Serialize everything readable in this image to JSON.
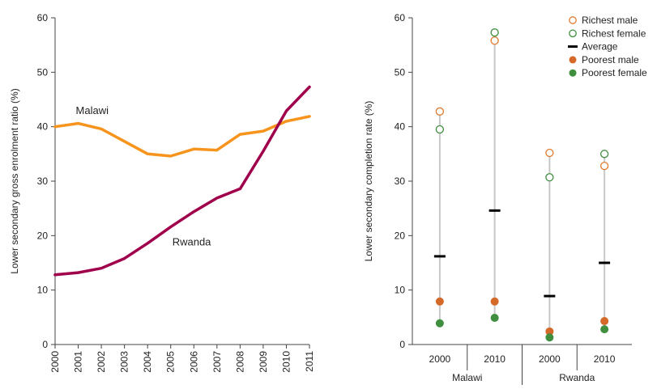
{
  "chart_data": [
    {
      "type": "line",
      "ylabel": "Lower secondary gross enrolment ratio (%)",
      "ylim": [
        0,
        60
      ],
      "yticks": [
        "0",
        "10",
        "20",
        "30",
        "40",
        "50",
        "60"
      ],
      "categories": [
        "2000",
        "2001",
        "2002",
        "2003",
        "2004",
        "2005",
        "2006",
        "2007",
        "2008",
        "2009",
        "2010",
        "2011"
      ],
      "series": [
        {
          "name": "Malawi",
          "color": "#f7941d",
          "values": [
            40.0,
            40.6,
            39.6,
            37.3,
            35.0,
            34.6,
            35.9,
            35.7,
            38.6,
            39.2,
            41.0,
            41.9
          ]
        },
        {
          "name": "Rwanda",
          "color": "#a0004b",
          "values": [
            12.8,
            13.2,
            14.0,
            15.8,
            18.6,
            21.6,
            24.4,
            26.9,
            28.6,
            35.5,
            42.9,
            47.3
          ]
        }
      ]
    },
    {
      "type": "scatter",
      "ylabel": "Lower secondary completion rate (%)",
      "ylim": [
        0,
        60
      ],
      "yticks": [
        "0",
        "10",
        "20",
        "30",
        "40",
        "50",
        "60"
      ],
      "groups": [
        {
          "country": "Malawi",
          "years": [
            "2000",
            "2010"
          ]
        },
        {
          "country": "Rwanda",
          "years": [
            "2000",
            "2010"
          ]
        }
      ],
      "legend": [
        {
          "key": "richest_male",
          "label": "Richest male",
          "marker": "open-circle",
          "color": "#e07a2e"
        },
        {
          "key": "richest_female",
          "label": "Richest female",
          "marker": "open-circle",
          "color": "#3f8f3f"
        },
        {
          "key": "average",
          "label": "Average",
          "marker": "dash",
          "color": "#000000"
        },
        {
          "key": "poorest_male",
          "label": "Poorest male",
          "marker": "filled-circle",
          "color": "#d4692a"
        },
        {
          "key": "poorest_female",
          "label": "Poorest female",
          "marker": "filled-circle",
          "color": "#3f8f3f"
        }
      ],
      "points": [
        {
          "country": "Malawi",
          "year": "2000",
          "richest_male": 42.8,
          "richest_female": 39.5,
          "average": 16.2,
          "poorest_male": 7.9,
          "poorest_female": 3.9
        },
        {
          "country": "Malawi",
          "year": "2010",
          "richest_male": 55.8,
          "richest_female": 57.3,
          "average": 24.6,
          "poorest_male": 7.9,
          "poorest_female": 4.9
        },
        {
          "country": "Rwanda",
          "year": "2000",
          "richest_male": 35.2,
          "richest_female": 30.7,
          "average": 8.9,
          "poorest_male": 2.4,
          "poorest_female": 1.3
        },
        {
          "country": "Rwanda",
          "year": "2010",
          "richest_male": 32.8,
          "richest_female": 35.0,
          "average": 15.0,
          "poorest_male": 4.3,
          "poorest_female": 2.8
        }
      ]
    }
  ]
}
